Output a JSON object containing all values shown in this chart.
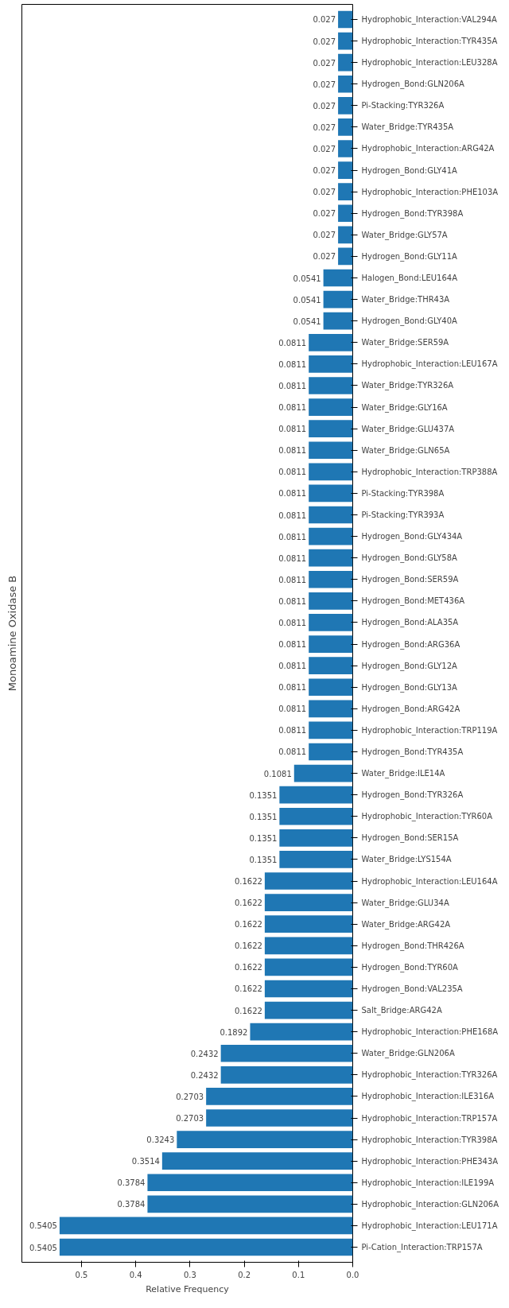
{
  "chart_data": {
    "type": "bar",
    "orientation": "horizontal",
    "title": "Monoamine Oxidase B",
    "xlabel": "Relative Frequency",
    "color": "#1f77b4",
    "data_labels": true,
    "grid": false,
    "xlim": [
      0.61,
      0
    ],
    "xticks": [
      {
        "value": 0,
        "label": "0.0"
      },
      {
        "value": 0.1,
        "label": "0.1"
      },
      {
        "value": 0.2,
        "label": "0.2"
      },
      {
        "value": 0.3,
        "label": "0.3"
      },
      {
        "value": 0.4,
        "label": "0.4"
      },
      {
        "value": 0.5,
        "label": "0.5"
      }
    ],
    "categories": [
      "Hydrophobic_Interaction:VAL294A",
      "Hydrophobic_Interaction:TYR435A",
      "Hydrophobic_Interaction:LEU328A",
      "Hydrogen_Bond:GLN206A",
      "Pi-Stacking:TYR326A",
      "Water_Bridge:TYR435A",
      "Hydrophobic_Interaction:ARG42A",
      "Hydrogen_Bond:GLY41A",
      "Hydrophobic_Interaction:PHE103A",
      "Hydrogen_Bond:TYR398A",
      "Water_Bridge:GLY57A",
      "Hydrogen_Bond:GLY11A",
      "Halogen_Bond:LEU164A",
      "Water_Bridge:THR43A",
      "Hydrogen_Bond:GLY40A",
      "Water_Bridge:SER59A",
      "Hydrophobic_Interaction:LEU167A",
      "Water_Bridge:TYR326A",
      "Water_Bridge:GLY16A",
      "Water_Bridge:GLU437A",
      "Water_Bridge:GLN65A",
      "Hydrophobic_Interaction:TRP388A",
      "Pi-Stacking:TYR398A",
      "Pi-Stacking:TYR393A",
      "Hydrogen_Bond:GLY434A",
      "Hydrogen_Bond:GLY58A",
      "Hydrogen_Bond:SER59A",
      "Hydrogen_Bond:MET436A",
      "Hydrogen_Bond:ALA35A",
      "Hydrogen_Bond:ARG36A",
      "Hydrogen_Bond:GLY12A",
      "Hydrogen_Bond:GLY13A",
      "Hydrogen_Bond:ARG42A",
      "Hydrophobic_Interaction:TRP119A",
      "Hydrogen_Bond:TYR435A",
      "Water_Bridge:ILE14A",
      "Hydrogen_Bond:TYR326A",
      "Hydrophobic_Interaction:TYR60A",
      "Hydrogen_Bond:SER15A",
      "Water_Bridge:LYS154A",
      "Hydrophobic_Interaction:LEU164A",
      "Water_Bridge:GLU34A",
      "Water_Bridge:ARG42A",
      "Hydrogen_Bond:THR426A",
      "Hydrogen_Bond:TYR60A",
      "Hydrogen_Bond:VAL235A",
      "Salt_Bridge:ARG42A",
      "Hydrophobic_Interaction:PHE168A",
      "Water_Bridge:GLN206A",
      "Hydrophobic_Interaction:TYR326A",
      "Hydrophobic_Interaction:ILE316A",
      "Hydrophobic_Interaction:TRP157A",
      "Hydrophobic_Interaction:TYR398A",
      "Hydrophobic_Interaction:PHE343A",
      "Hydrophobic_Interaction:ILE199A",
      "Hydrophobic_Interaction:GLN206A",
      "Hydrophobic_Interaction:LEU171A",
      "Pi-Cation_Interaction:TRP157A"
    ],
    "values": [
      0.027,
      0.027,
      0.027,
      0.027,
      0.027,
      0.027,
      0.027,
      0.027,
      0.027,
      0.027,
      0.027,
      0.027,
      0.0541,
      0.0541,
      0.0541,
      0.0811,
      0.0811,
      0.0811,
      0.0811,
      0.0811,
      0.0811,
      0.0811,
      0.0811,
      0.0811,
      0.0811,
      0.0811,
      0.0811,
      0.0811,
      0.0811,
      0.0811,
      0.0811,
      0.0811,
      0.0811,
      0.0811,
      0.0811,
      0.1081,
      0.1351,
      0.1351,
      0.1351,
      0.1351,
      0.1622,
      0.1622,
      0.1622,
      0.1622,
      0.1622,
      0.1622,
      0.1622,
      0.1892,
      0.2432,
      0.2432,
      0.2703,
      0.2703,
      0.3243,
      0.3514,
      0.3784,
      0.3784,
      0.5405,
      0.5405
    ]
  }
}
